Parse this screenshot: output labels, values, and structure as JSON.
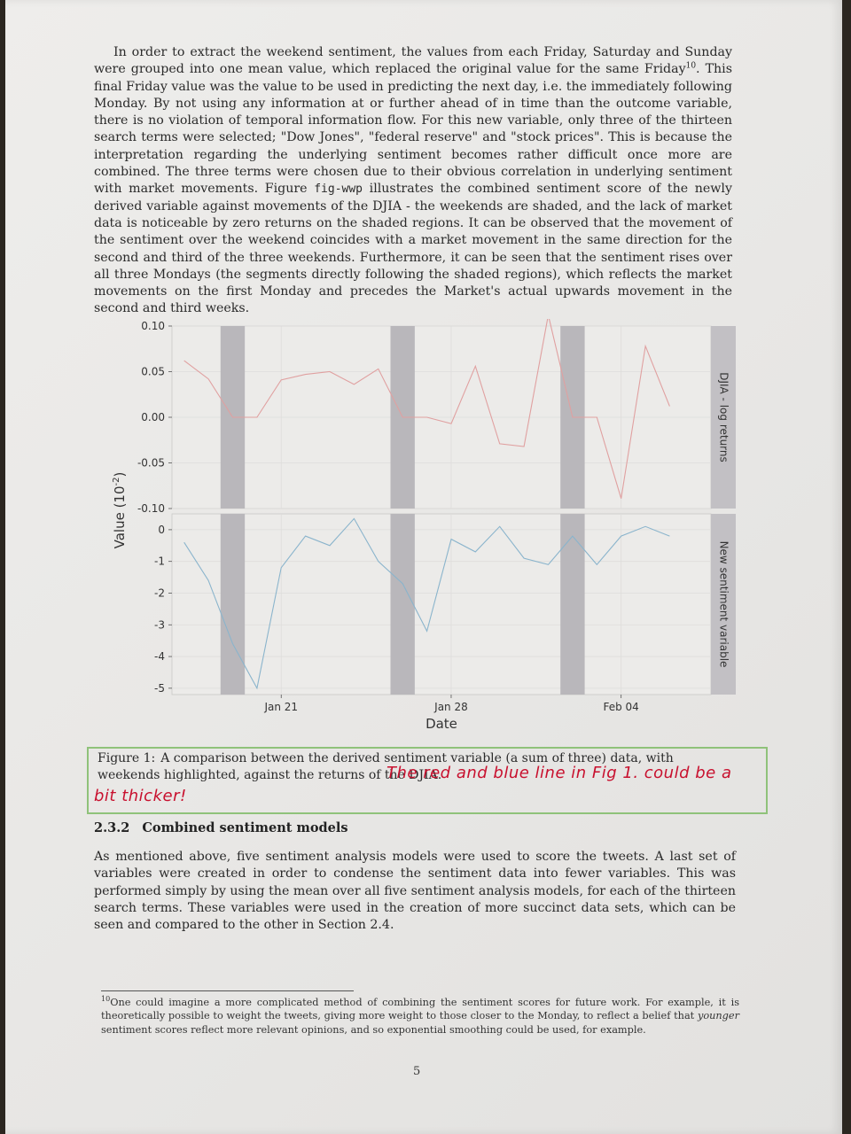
{
  "body_paragraph_1": {
    "part1": "In order to extract the weekend sentiment, the values from each Friday, Saturday and Sunday were grouped into one mean value, which replaced the original value for the same Friday",
    "footnote_ref": "10",
    "part2": ". This final Friday value was the value to be used in predicting the next day, i.e. the immediately following Monday. By not using any information at or further ahead of in time than the outcome variable, there is no violation of temporal information flow. For this new variable, only three of the thirteen search terms were selected; \"Dow Jones\", \"federal reserve\" and \"stock prices\". This is because the interpretation regarding the underlying sentiment becomes rather difficult once more are combined. The three terms were chosen due to their obvious correlation in underlying sentiment with market movements. Figure ",
    "ref_code": "fig-wwp",
    "part3": " illustrates the combined sentiment score of the newly derived variable against movements of the DJIA - the weekends are shaded, and the lack of market data is noticeable by zero returns on the shaded regions. It can be observed that the movement of the sentiment over the weekend coincides with a market movement in the same direction for the second and third of the three weekends. Furthermore, it can be seen that the sentiment rises over all three Mondays (the segments directly following the shaded regions), which reflects the market movements on the first Monday and precedes the Market's actual upwards movement in the second and third weeks."
  },
  "figure": {
    "caption_label": "Figure 1:",
    "caption_text": "A comparison between the derived sentiment variable (a sum of three) data, with weekends highlighted, against the returns of the DJIA.",
    "handwritten_note": "The red and blue line in Fig 1. could be a bit thicker!"
  },
  "section": {
    "number": "2.3.2",
    "title": "Combined sentiment models"
  },
  "body_paragraph_2": "As mentioned above, five sentiment analysis models were used to score the tweets. A last set of variables were created in order to condense the sentiment data into fewer variables. This was performed simply by using the mean over all five sentiment analysis models, for each of the thirteen search terms. These variables were used in the creation of more succinct data sets, which can be seen and compared to the other in Section 2.4.",
  "footnote": {
    "number": "10",
    "text_before": "One could imagine a more complicated method of combining the sentiment scores for future work. For example, it is theoretically possible to weight the tweets, giving more weight to those closer to the Monday, to reflect a belief that ",
    "emphasis": "younger",
    "text_after": " sentiment scores reflect more relevant opinions, and so exponential smoothing could be used, for example."
  },
  "page_number": "5",
  "chart_data": {
    "type": "line",
    "xlabel": "Date",
    "ylabel_base": "Value (10",
    "ylabel_exp": "-2",
    "ylabel_close": ")",
    "x_tick_labels": [
      "Jan 21",
      "Jan 28",
      "Feb 04"
    ],
    "x_tick_days": [
      21,
      28,
      35
    ],
    "xlim_days": [
      16.5,
      38.7
    ],
    "weekend_shading_days": [
      [
        18.5,
        19.5
      ],
      [
        25.5,
        26.5
      ],
      [
        32.5,
        33.5
      ]
    ],
    "grid": true,
    "panels": [
      {
        "name": "DJIA - log returns",
        "color": "#e0a0a0",
        "ylim": [
          -0.1,
          0.1
        ],
        "ytick_labels": [
          "0.10",
          "0.05",
          "0.00",
          "-0.05",
          "-0.10"
        ],
        "ytick_values": [
          0.1,
          0.05,
          0.0,
          -0.05,
          -0.1
        ],
        "x_days": [
          17,
          18,
          19,
          20,
          21,
          22,
          23,
          24,
          25,
          26,
          27,
          28,
          29,
          30,
          31,
          32,
          33,
          34,
          35,
          36,
          37,
          38
        ],
        "values": [
          0.062,
          0.042,
          0.0,
          0.0,
          0.041,
          0.047,
          0.05,
          0.036,
          0.053,
          0.0,
          0.0,
          -0.007,
          0.056,
          -0.029,
          -0.032,
          0.112,
          0.0,
          0.0,
          -0.089,
          0.078,
          0.012,
          null
        ]
      },
      {
        "name": "New sentiment variable",
        "color": "#8ab4cc",
        "ylim": [
          -5.2,
          0.5
        ],
        "ytick_labels": [
          "0",
          "-1",
          "-2",
          "-3",
          "-4",
          "-5"
        ],
        "ytick_values": [
          0,
          -1,
          -2,
          -3,
          -4,
          -5
        ],
        "x_days": [
          17,
          18,
          19,
          20,
          21,
          22,
          23,
          24,
          25,
          26,
          27,
          28,
          29,
          30,
          31,
          32,
          33,
          34,
          35,
          36,
          37,
          38
        ],
        "values": [
          -0.4,
          -1.6,
          -3.6,
          -5.0,
          -1.2,
          -0.2,
          -0.5,
          0.35,
          -1.0,
          -1.7,
          -3.2,
          -0.3,
          -0.7,
          0.1,
          -0.9,
          -1.1,
          -0.2,
          -1.1,
          -0.2,
          0.1,
          -0.2,
          null
        ]
      }
    ]
  }
}
